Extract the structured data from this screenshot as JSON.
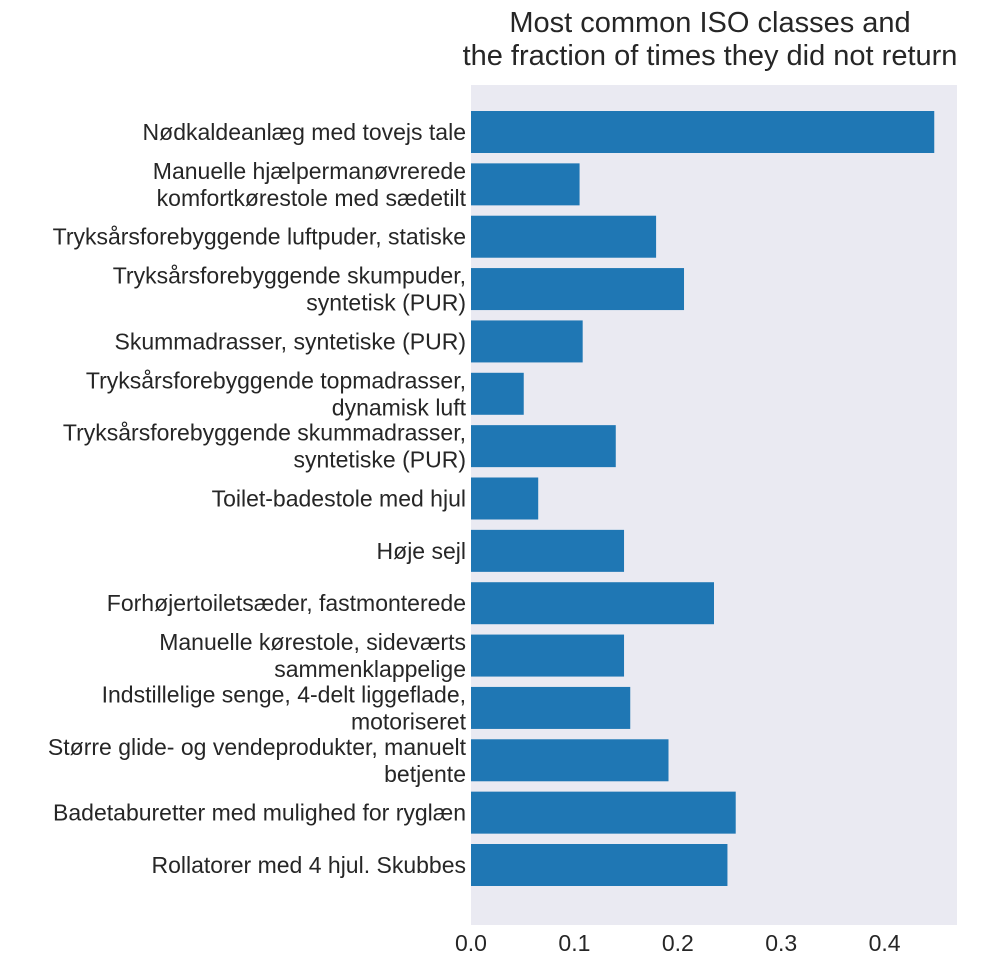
{
  "chart_data": {
    "type": "bar",
    "orientation": "horizontal",
    "title": [
      "Most common ISO classes and",
      "the fraction of times they did not return"
    ],
    "xlabel": "",
    "ylabel": "",
    "xlim": [
      0,
      0.47
    ],
    "xticks": [
      "0.0",
      "0.1",
      "0.2",
      "0.3",
      "0.4"
    ],
    "xtick_values": [
      0,
      0.1,
      0.2,
      0.3,
      0.4
    ],
    "grid": false,
    "bar_color": "#1f77b4",
    "background_color": "#eaeaf2",
    "categories": [
      [
        "Nødkaldeanlæg med tovejs tale"
      ],
      [
        "Manuelle hjælpermanøvrerede",
        "komfortkørestole med sædetilt"
      ],
      [
        "Tryksårsforebyggende luftpuder, statiske"
      ],
      [
        "Tryksårsforebyggende skumpuder,",
        "syntetisk (PUR)"
      ],
      [
        "Skummadrasser, syntetiske (PUR)"
      ],
      [
        "Tryksårsforebyggende topmadrasser,",
        "dynamisk luft"
      ],
      [
        "Tryksårsforebyggende skummadrasser,",
        "syntetiske (PUR)"
      ],
      [
        "Toilet-badestole med hjul"
      ],
      [
        "Høje sejl"
      ],
      [
        "Forhøjertoiletsæder, fastmonterede"
      ],
      [
        "Manuelle kørestole, sideværts",
        "sammenklappelige"
      ],
      [
        "Indstillelige senge, 4-delt liggeflade,",
        "motoriseret"
      ],
      [
        "Større glide- og vendeprodukter, manuelt",
        "betjente"
      ],
      [
        "Badetaburetter med mulighed for ryglæn"
      ],
      [
        "Rollatorer med 4 hjul. Skubbes"
      ]
    ],
    "values": [
      0.448,
      0.105,
      0.179,
      0.206,
      0.108,
      0.051,
      0.14,
      0.065,
      0.148,
      0.235,
      0.148,
      0.154,
      0.191,
      0.256,
      0.248
    ]
  }
}
